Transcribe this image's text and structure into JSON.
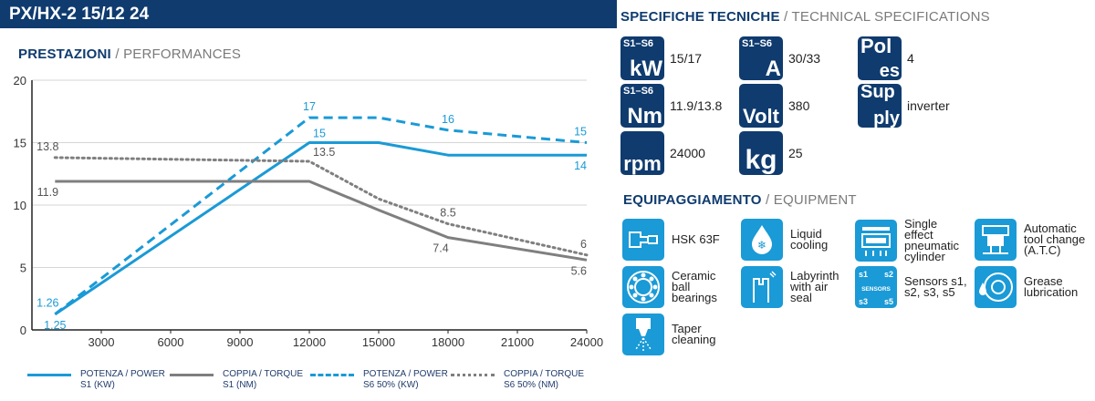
{
  "header": {
    "title": "PX/HX-2 15/12 24"
  },
  "performance": {
    "title_it": "PRESTAZIONI",
    "title_en": "PERFORMANCES"
  },
  "specs_section": {
    "title_it": "SPECIFICHE TECNICHE",
    "title_en": "TECHNICAL SPECIFICATIONS"
  },
  "equipment_section": {
    "title_it": "EQUIPAGGIAMENTO",
    "title_en": "EQUIPMENT"
  },
  "specs": [
    {
      "badge_small": "S1–S6",
      "badge_main": "kW",
      "value": "15/17"
    },
    {
      "badge_small": "S1–S6",
      "badge_main": "A",
      "value": "30/33"
    },
    {
      "badge_small": "Pol",
      "badge_main": "es",
      "value": "4"
    },
    {
      "badge_small": "S1–S6",
      "badge_main": "Nm",
      "value": "11.9/13.8"
    },
    {
      "badge_small": "",
      "badge_main": "Volt",
      "value": "380"
    },
    {
      "badge_small": "Sup",
      "badge_main": "ply",
      "value": "inverter"
    },
    {
      "badge_small": "",
      "badge_main": "rpm",
      "value": "24000"
    },
    {
      "badge_small": "",
      "badge_main": "kg",
      "value": "25"
    }
  ],
  "equipment": [
    {
      "icon": "hsk-icon",
      "label": "HSK 63F"
    },
    {
      "icon": "liquid-cooling-icon",
      "label": "Liquid cooling"
    },
    {
      "icon": "pneumatic-cylinder-icon",
      "label": "Single effect pneumatic cylinder"
    },
    {
      "icon": "atc-icon",
      "label": "Automatic tool change (A.T.C)"
    },
    {
      "icon": "ceramic-bearings-icon",
      "label": "Ceramic ball bearings"
    },
    {
      "icon": "labyrinth-icon",
      "label": "Labyrinth with air seal"
    },
    {
      "icon": "sensors-icon",
      "label": "Sensors s1, s2, s3, s5"
    },
    {
      "icon": "grease-icon",
      "label": "Grease lubrication"
    },
    {
      "icon": "taper-cleaning-icon",
      "label": "Taper cleaning"
    }
  ],
  "sensors_badge": {
    "s1": "s1",
    "s2": "s2",
    "s3": "s3",
    "s5": "s5",
    "center": "SENSORS"
  },
  "legend": [
    {
      "label1": "POTENZA / POWER",
      "label2": "S1 (KW)"
    },
    {
      "label1": "COPPIA / TORQUE",
      "label2": "S1 (NM)"
    },
    {
      "label1": "POTENZA / POWER",
      "label2": "S6 50% (KW)"
    },
    {
      "label1": "COPPIA / TORQUE",
      "label2": "S6 50% (NM)"
    }
  ],
  "colors": {
    "navy": "#0f3b6f",
    "blue": "#1a9ad6",
    "gray": "#7f7f7f"
  },
  "chart_data": {
    "type": "line",
    "xlim": [
      0,
      24000
    ],
    "ylim": [
      0,
      20
    ],
    "x_ticks": [
      3000,
      6000,
      9000,
      12000,
      15000,
      18000,
      21000,
      24000
    ],
    "y_ticks": [
      0,
      5,
      10,
      15,
      20
    ],
    "series": [
      {
        "name": "POTENZA / POWER S1 (KW)",
        "color": "#1a9ad6",
        "style": "solid",
        "x": [
          1000,
          12000,
          15000,
          18000,
          24000
        ],
        "y": [
          1.25,
          15,
          15,
          14,
          14
        ]
      },
      {
        "name": "COPPIA / TORQUE S1 (NM)",
        "color": "#7f7f7f",
        "style": "solid",
        "x": [
          1000,
          12000,
          15000,
          18000,
          24000
        ],
        "y": [
          11.9,
          11.9,
          9.6,
          7.4,
          5.6
        ]
      },
      {
        "name": "POTENZA / POWER S6 50% (KW)",
        "color": "#1a9ad6",
        "style": "dashed",
        "x": [
          1000,
          12000,
          15000,
          18000,
          24000
        ],
        "y": [
          1.26,
          17,
          17,
          16,
          15
        ]
      },
      {
        "name": "COPPIA / TORQUE S6 50% (NM)",
        "color": "#7f7f7f",
        "style": "dotted",
        "x": [
          1000,
          12000,
          15000,
          18000,
          24000
        ],
        "y": [
          13.8,
          13.5,
          10.5,
          8.5,
          6
        ]
      }
    ],
    "annotations": [
      {
        "text": "1.26",
        "x": 1000,
        "y": 1.26,
        "color": "#1a9ad6",
        "pos": "above-left"
      },
      {
        "text": "1.25",
        "x": 1000,
        "y": 1.25,
        "color": "#1a9ad6",
        "pos": "below"
      },
      {
        "text": "13.8",
        "x": 1000,
        "y": 13.8,
        "color": "#555555",
        "pos": "above-left"
      },
      {
        "text": "11.9",
        "x": 1000,
        "y": 11.9,
        "color": "#555555",
        "pos": "below-left"
      },
      {
        "text": "17",
        "x": 12000,
        "y": 17,
        "color": "#1a9ad6",
        "pos": "above"
      },
      {
        "text": "15",
        "x": 12000,
        "y": 15,
        "color": "#1a9ad6",
        "pos": "above-right"
      },
      {
        "text": "13.5",
        "x": 12000,
        "y": 13.5,
        "color": "#555555",
        "pos": "above-right"
      },
      {
        "text": "16",
        "x": 18000,
        "y": 16,
        "color": "#1a9ad6",
        "pos": "above"
      },
      {
        "text": "8.5",
        "x": 18000,
        "y": 8.5,
        "color": "#555555",
        "pos": "above"
      },
      {
        "text": "7.4",
        "x": 18000,
        "y": 7.4,
        "color": "#555555",
        "pos": "below-left"
      },
      {
        "text": "15",
        "x": 24000,
        "y": 15,
        "color": "#1a9ad6",
        "pos": "above-end"
      },
      {
        "text": "14",
        "x": 24000,
        "y": 14,
        "color": "#1a9ad6",
        "pos": "below-end"
      },
      {
        "text": "6",
        "x": 24000,
        "y": 6,
        "color": "#555555",
        "pos": "above-end"
      },
      {
        "text": "5.6",
        "x": 24000,
        "y": 5.6,
        "color": "#555555",
        "pos": "below-end"
      }
    ]
  }
}
